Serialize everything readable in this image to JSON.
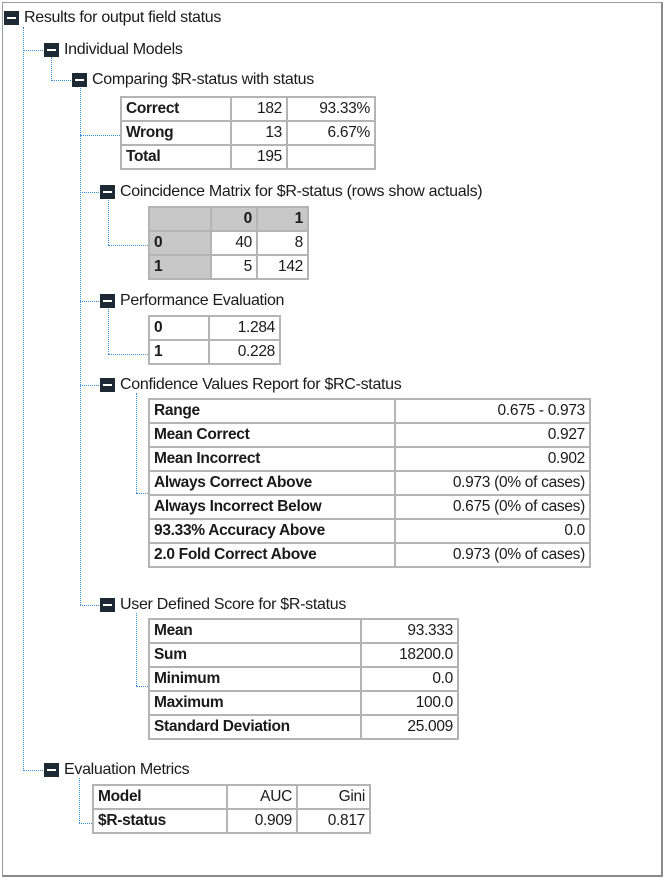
{
  "root": {
    "label": "Results for output field status"
  },
  "individual_models": {
    "label": "Individual Models"
  },
  "comparing": {
    "label": "Comparing $R-status with status",
    "rows": [
      {
        "label": "Correct",
        "count": "182",
        "percent": "93.33%"
      },
      {
        "label": "Wrong",
        "count": "13",
        "percent": "6.67%"
      },
      {
        "label": "Total",
        "count": "195",
        "percent": ""
      }
    ]
  },
  "coincidence": {
    "label": "Coincidence Matrix for $R-status (rows show actuals)",
    "columns": [
      "0",
      "1"
    ],
    "rows": [
      {
        "label": "0",
        "values": [
          "40",
          "8"
        ]
      },
      {
        "label": "1",
        "values": [
          "5",
          "142"
        ]
      }
    ]
  },
  "performance": {
    "label": "Performance Evaluation",
    "rows": [
      {
        "label": "0",
        "value": "1.284"
      },
      {
        "label": "1",
        "value": "0.228"
      }
    ]
  },
  "confidence": {
    "label": "Confidence Values Report for $RC-status",
    "rows": [
      {
        "label": "Range",
        "value": "0.675 - 0.973"
      },
      {
        "label": "Mean Correct",
        "value": "0.927"
      },
      {
        "label": "Mean Incorrect",
        "value": "0.902"
      },
      {
        "label": "Always Correct Above",
        "value": "0.973 (0% of cases)"
      },
      {
        "label": "Always Incorrect Below",
        "value": "0.675 (0% of cases)"
      },
      {
        "label": "93.33% Accuracy Above",
        "value": "0.0"
      },
      {
        "label": "2.0 Fold Correct Above",
        "value": "0.973 (0% of cases)"
      }
    ]
  },
  "user_score": {
    "label": "User Defined Score for $R-status",
    "rows": [
      {
        "label": "Mean",
        "value": "93.333"
      },
      {
        "label": "Sum",
        "value": "18200.0"
      },
      {
        "label": "Minimum",
        "value": "0.0"
      },
      {
        "label": "Maximum",
        "value": "100.0"
      },
      {
        "label": "Standard Deviation",
        "value": "25.009"
      }
    ]
  },
  "evaluation": {
    "label": "Evaluation Metrics",
    "headers": [
      "Model",
      "AUC",
      "Gini"
    ],
    "rows": [
      {
        "model": "$R-status",
        "auc": "0.909",
        "gini": "0.817"
      }
    ]
  }
}
